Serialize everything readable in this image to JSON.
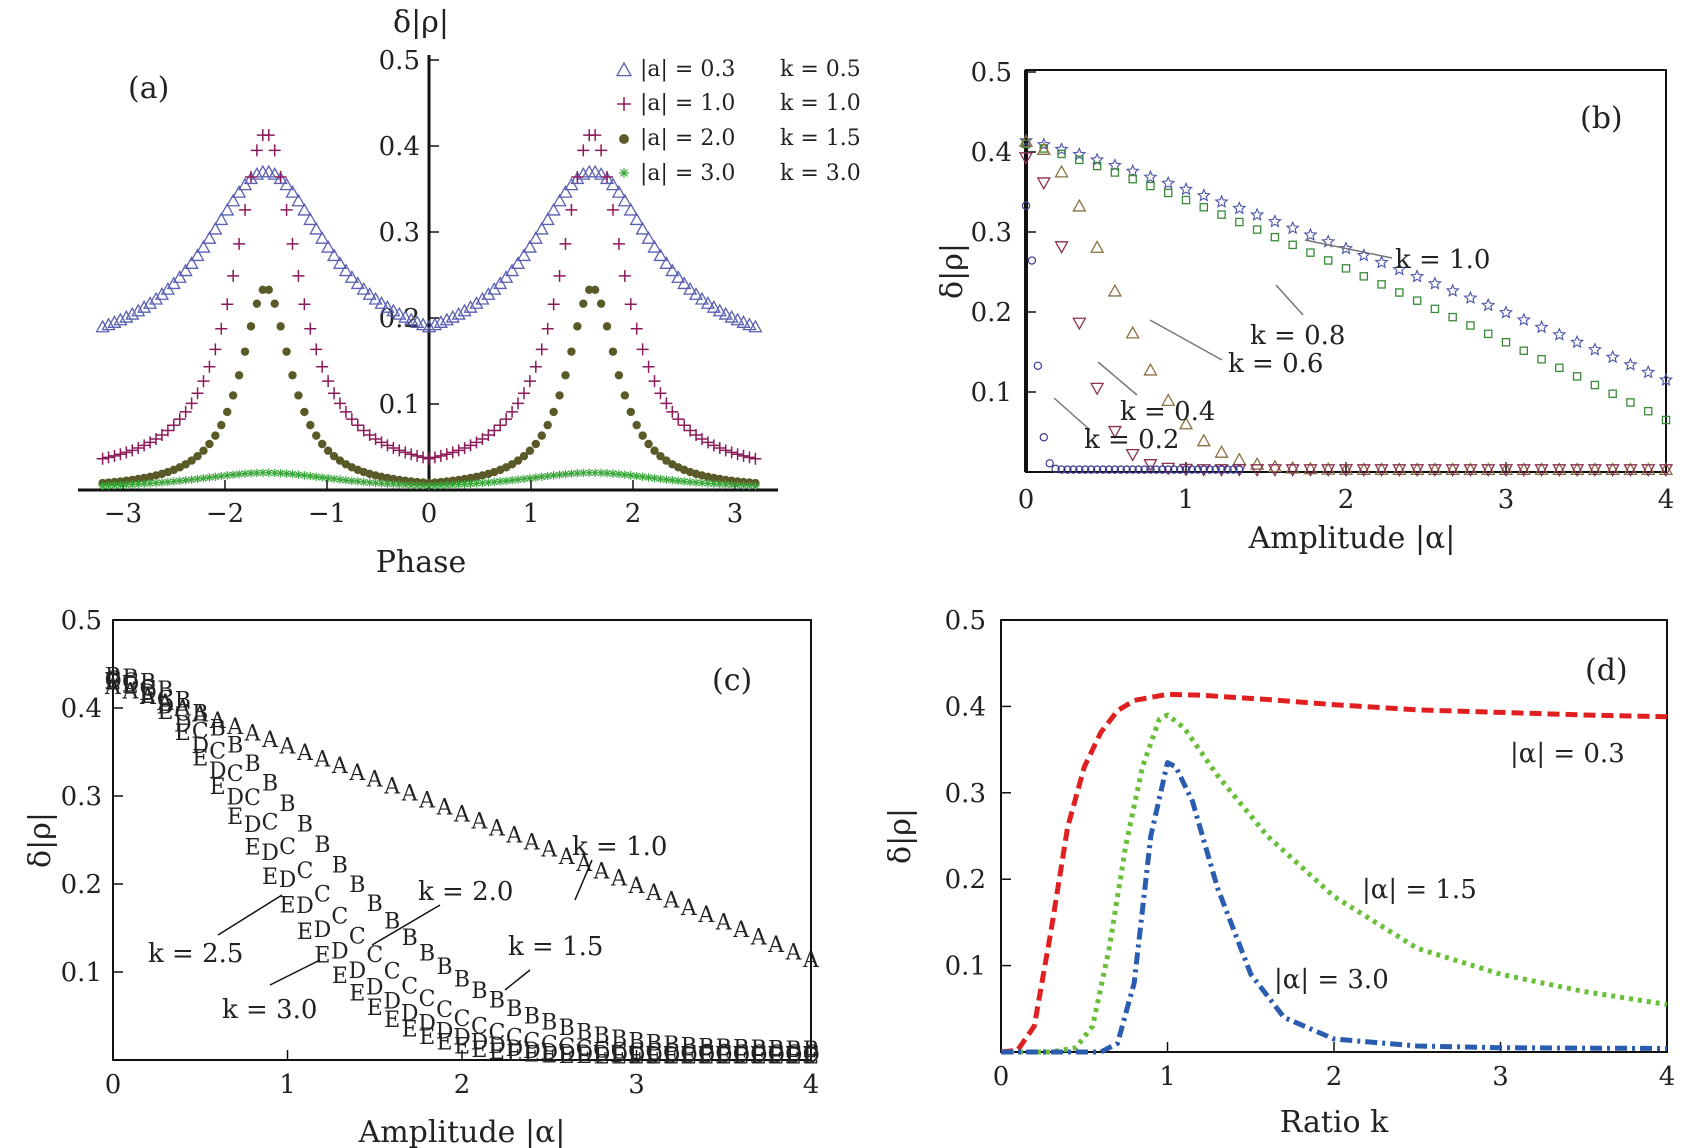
{
  "chart_data": [
    {
      "panel_label": "(a)",
      "type": "scatter",
      "xlabel": "Phase",
      "ylabel": "δ|ρ|",
      "xlim": [
        -3.3,
        3.3
      ],
      "ylim": [
        0,
        0.5
      ],
      "xticks": [
        "−3",
        "−2",
        "−1",
        "0",
        "1",
        "2",
        "3"
      ],
      "yticks": [
        "0.1",
        "0.2",
        "0.3",
        "0.4",
        "0.5"
      ],
      "legend_position": "top-right",
      "legend": [
        {
          "a": "|a| = 0.3",
          "k": "k = 0.5"
        },
        {
          "a": "|a| = 1.0",
          "k": "k = 1.0"
        },
        {
          "a": "|a| = 2.0",
          "k": "k = 1.5"
        },
        {
          "a": "|a| = 3.0",
          "k": "k = 3.0"
        }
      ],
      "series": [
        {
          "marker": "triangle",
          "color": "#5a5fb0",
          "peak_x": 1.6,
          "peak": 0.37,
          "base": 0.15,
          "width": 0.75
        },
        {
          "marker": "plus",
          "color": "#8b1a5a",
          "peak_x": 1.6,
          "peak": 0.415,
          "base": 0.015,
          "width": 0.38
        },
        {
          "marker": "dot",
          "color": "#5a5a28",
          "peak_x": 1.6,
          "peak": 0.235,
          "base": 0.0,
          "width": 0.3
        },
        {
          "marker": "asterisk",
          "color": "#3aa83a",
          "peak_x": 1.6,
          "peak": 0.02,
          "base": 0.0,
          "width": 0.9
        }
      ]
    },
    {
      "panel_label": "(b)",
      "type": "scatter",
      "xlabel": "Amplitude |α|",
      "ylabel": "δ|ρ|",
      "xlim": [
        0,
        4
      ],
      "ylim": [
        0,
        0.5
      ],
      "xticks": [
        "0",
        "1",
        "2",
        "3",
        "4"
      ],
      "yticks": [
        "0.1",
        "0.2",
        "0.3",
        "0.4",
        "0.5"
      ],
      "annotations": [
        "k = 1.0",
        "k = 0.8",
        "k = 0.6",
        "k = 0.4",
        "k = 0.2"
      ],
      "series": [
        {
          "name": "k = 1.0",
          "marker": "star",
          "color": "#4a55a8",
          "y0": 0.414,
          "y4": 0.115
        },
        {
          "name": "k = 0.8",
          "marker": "square",
          "color": "#3a8a3a",
          "y0": 0.41,
          "y4": 0.065
        },
        {
          "name": "k = 0.6",
          "marker": "triangle",
          "color": "#8a7040",
          "y0": 0.41,
          "scale": 0.65
        },
        {
          "name": "k = 0.4",
          "marker": "triangle-down",
          "color": "#8a3050",
          "y0": 0.39,
          "scale": 0.35
        },
        {
          "name": "k = 0.2",
          "marker": "circle",
          "color": "#3a3a90",
          "y0": 0.33,
          "scale": 0.07
        }
      ]
    },
    {
      "panel_label": "(c)",
      "type": "scatter",
      "xlabel": "Amplitude |α|",
      "ylabel": "δ|ρ|",
      "xlim": [
        0,
        4
      ],
      "ylim": [
        0,
        0.5
      ],
      "xticks": [
        "0",
        "1",
        "2",
        "3",
        "4"
      ],
      "yticks": [
        "0.1",
        "0.2",
        "0.3",
        "0.4",
        "0.5"
      ],
      "annotations": [
        "k = 1.0",
        "k = 2.0",
        "k = 1.5",
        "k = 2.5",
        "k = 3.0"
      ],
      "series": [
        {
          "name": "k = 1.0",
          "marker": "A",
          "color": "#4a55a8",
          "y0": 0.425,
          "y4": 0.115
        },
        {
          "name": "k = 1.5",
          "marker": "B",
          "color": "#a0407a",
          "y0": 0.425,
          "y4": 0.012
        },
        {
          "name": "k = 2.0",
          "marker": "C",
          "color": "#9a8a40",
          "y0": 0.425,
          "y4": 0.008
        },
        {
          "name": "k = 2.5",
          "marker": "D",
          "color": "#3a9a50",
          "y0": 0.425,
          "y4": 0.006
        },
        {
          "name": "k = 3.0",
          "marker": "E",
          "color": "#3a6aaa",
          "y0": 0.425,
          "y4": 0.005
        }
      ]
    },
    {
      "panel_label": "(d)",
      "type": "line",
      "xlabel": "Ratio k",
      "ylabel": "δ|ρ|",
      "xlim": [
        0,
        4
      ],
      "ylim": [
        0,
        0.5
      ],
      "xticks": [
        "0",
        "1",
        "2",
        "3",
        "4"
      ],
      "yticks": [
        "0.1",
        "0.2",
        "0.3",
        "0.4",
        "0.5"
      ],
      "series": [
        {
          "name": "|α| = 0.3",
          "style": "dashed",
          "color": "#e02020",
          "points": [
            [
              0,
              0
            ],
            [
              0.1,
              0.002
            ],
            [
              0.2,
              0.03
            ],
            [
              0.3,
              0.14
            ],
            [
              0.4,
              0.26
            ],
            [
              0.5,
              0.33
            ],
            [
              0.6,
              0.37
            ],
            [
              0.7,
              0.395
            ],
            [
              0.8,
              0.407
            ],
            [
              1.0,
              0.414
            ],
            [
              1.2,
              0.413
            ],
            [
              1.6,
              0.408
            ],
            [
              2.0,
              0.402
            ],
            [
              2.5,
              0.396
            ],
            [
              3.0,
              0.393
            ],
            [
              3.5,
              0.39
            ],
            [
              4.0,
              0.388
            ]
          ]
        },
        {
          "name": "|α| = 1.5",
          "style": "dotted",
          "color": "#6abf3a",
          "points": [
            [
              0,
              0
            ],
            [
              0.3,
              0
            ],
            [
              0.45,
              0.005
            ],
            [
              0.55,
              0.03
            ],
            [
              0.65,
              0.12
            ],
            [
              0.75,
              0.24
            ],
            [
              0.85,
              0.33
            ],
            [
              0.95,
              0.385
            ],
            [
              1.0,
              0.39
            ],
            [
              1.1,
              0.375
            ],
            [
              1.3,
              0.32
            ],
            [
              1.6,
              0.25
            ],
            [
              2.0,
              0.18
            ],
            [
              2.5,
              0.12
            ],
            [
              3.0,
              0.09
            ],
            [
              3.5,
              0.07
            ],
            [
              4.0,
              0.055
            ]
          ]
        },
        {
          "name": "|α| = 3.0",
          "style": "dashdot",
          "color": "#2a5cb0",
          "points": [
            [
              0,
              0
            ],
            [
              0.6,
              0
            ],
            [
              0.7,
              0.01
            ],
            [
              0.8,
              0.08
            ],
            [
              0.9,
              0.25
            ],
            [
              1.0,
              0.335
            ],
            [
              1.05,
              0.33
            ],
            [
              1.15,
              0.29
            ],
            [
              1.3,
              0.19
            ],
            [
              1.5,
              0.09
            ],
            [
              1.7,
              0.04
            ],
            [
              2.0,
              0.015
            ],
            [
              2.5,
              0.007
            ],
            [
              3.0,
              0.005
            ],
            [
              4.0,
              0.004
            ]
          ]
        }
      ]
    }
  ]
}
